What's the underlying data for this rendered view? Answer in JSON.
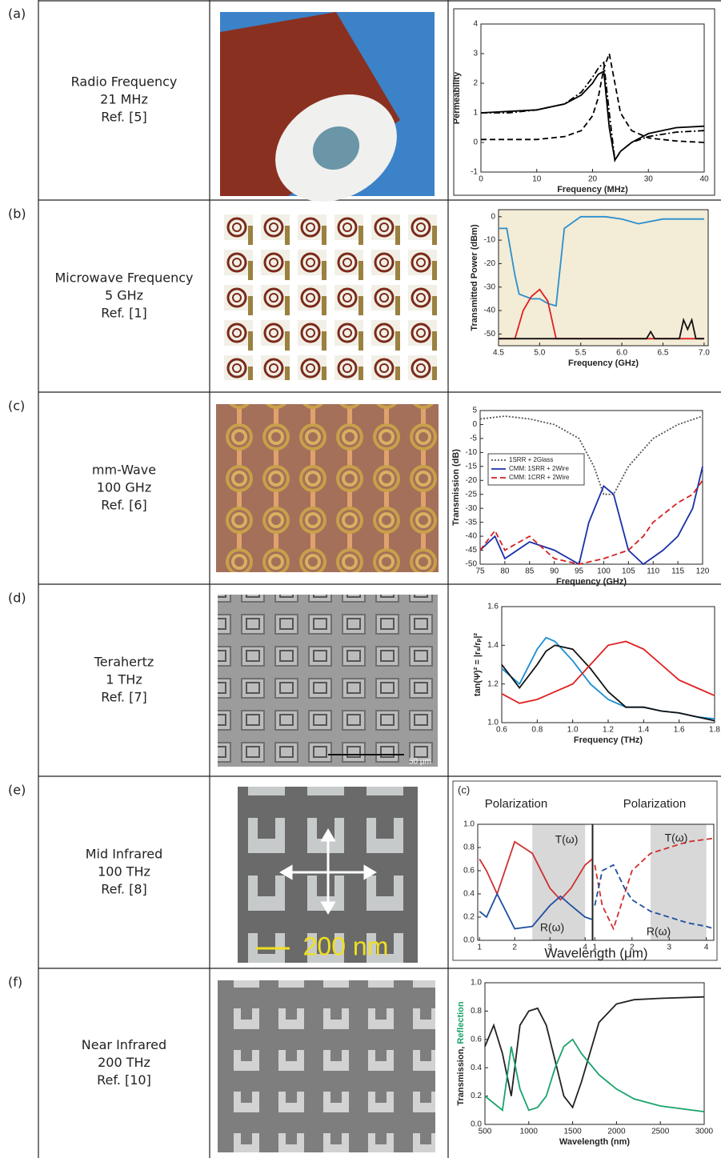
{
  "rows": [
    {
      "tag": "(a)",
      "label": [
        "Radio Frequency",
        "21 MHz",
        "Ref. [5]"
      ],
      "chart": {
        "type": "line",
        "xlabel": "Frequency (MHz)",
        "ylabel": "Permeability",
        "xlim": [
          0,
          40
        ],
        "ylim": [
          -1,
          4
        ],
        "xticks": [
          0,
          10,
          20,
          30,
          40
        ],
        "yticks": [
          -1,
          0,
          1,
          2,
          3,
          4
        ],
        "x": [
          0,
          5,
          10,
          15,
          18,
          20,
          21,
          22,
          23,
          24,
          25,
          27,
          30,
          35,
          40
        ],
        "series": [
          {
            "color": "#000000",
            "dash": "solid",
            "values": [
              1.0,
              1.05,
              1.1,
              1.3,
              1.6,
              2.0,
              2.3,
              2.4,
              0.5,
              -0.6,
              -0.3,
              0.0,
              0.3,
              0.5,
              0.55
            ]
          },
          {
            "color": "#000000",
            "dash": "dashdot",
            "values": [
              1.0,
              1.0,
              1.1,
              1.3,
              1.7,
              2.2,
              2.5,
              2.7,
              1.0,
              -0.6,
              -0.3,
              0.0,
              0.2,
              0.35,
              0.4
            ]
          },
          {
            "color": "#000000",
            "dash": "dash",
            "values": [
              0.1,
              0.1,
              0.1,
              0.2,
              0.4,
              0.9,
              1.5,
              2.5,
              3.0,
              2.0,
              1.0,
              0.4,
              0.15,
              0.05,
              0.0
            ]
          }
        ]
      }
    },
    {
      "tag": "(b)",
      "label": [
        "Microwave Frequency",
        "5 GHz",
        "Ref. [1]"
      ],
      "chart": {
        "type": "line",
        "xlabel": "Frequency (GHz)",
        "ylabel": "Transmitted Power (dBm)",
        "background": "#f3ecd6",
        "xlim": [
          4.5,
          7.05
        ],
        "ylim": [
          -55,
          3
        ],
        "xticks": [
          4.5,
          {
            "value": 5,
            "label": "5.0"
          },
          5.5,
          {
            "value": 6,
            "label": "6.0"
          },
          6.5,
          {
            "value": 7,
            "label": "7.0"
          }
        ],
        "yticks": [
          0,
          -10,
          -20,
          -30,
          -40,
          -50
        ],
        "series": [
          {
            "color": "#2a8fd0",
            "dash": "solid",
            "x": [
              4.5,
              4.6,
              4.7,
              4.75,
              4.9,
              5.0,
              5.1,
              5.2,
              5.3,
              5.5,
              5.8,
              6.0,
              6.2,
              6.5,
              6.8,
              7.0
            ],
            "values": [
              -5,
              -5,
              -25,
              -33,
              -35,
              -35,
              -37,
              -38,
              -5,
              0,
              0,
              -1,
              -3,
              -1,
              -1,
              -1
            ]
          },
          {
            "color": "#e02020",
            "dash": "solid",
            "x": [
              4.5,
              4.7,
              4.8,
              4.9,
              5.0,
              5.1,
              5.2,
              7.0
            ],
            "values": [
              -52,
              -52,
              -40,
              -34,
              -31,
              -36,
              -52,
              -52
            ]
          },
          {
            "color": "#111111",
            "dash": "solid",
            "x": [
              4.5,
              6.3,
              6.35,
              6.4,
              6.7,
              6.75,
              6.8,
              6.85,
              6.9,
              7.0
            ],
            "values": [
              -52,
              -52,
              -49,
              -52,
              -52,
              -44,
              -48,
              -44,
              -52,
              -52
            ]
          }
        ]
      }
    },
    {
      "tag": "(c)",
      "label": [
        "mm-Wave",
        "100 GHz",
        "Ref.  [6]"
      ],
      "chart": {
        "type": "line",
        "xlabel": "Frequency (GHz)",
        "ylabel": "Transmission (dB)",
        "legend": "upper left",
        "xlim": [
          75,
          120
        ],
        "ylim": [
          -50,
          5
        ],
        "xticks": [
          75,
          80,
          85,
          90,
          95,
          100,
          105,
          110,
          115,
          120
        ],
        "yticks": [
          5,
          0,
          -5,
          -10,
          -15,
          -20,
          -25,
          -30,
          -35,
          -40,
          -45,
          -50
        ],
        "series": [
          {
            "name": "1SRR + 2Glass",
            "color": "#555555",
            "dash": "dot",
            "x": [
              75,
              80,
              85,
              90,
              95,
              98,
              100,
              102,
              105,
              110,
              115,
              120
            ],
            "values": [
              2,
              3,
              2,
              0,
              -5,
              -15,
              -25,
              -25,
              -15,
              -5,
              0,
              3
            ]
          },
          {
            "name": "CMM: 1SRR + 2Wire",
            "color": "#1a2fa8",
            "dash": "solid",
            "x": [
              75,
              78,
              80,
              85,
              90,
              95,
              97,
              100,
              102,
              105,
              108,
              112,
              115,
              118,
              120
            ],
            "values": [
              -45,
              -40,
              -48,
              -42,
              -45,
              -50,
              -35,
              -22,
              -25,
              -45,
              -50,
              -45,
              -40,
              -30,
              -15
            ]
          },
          {
            "name": "CMM: 1CRR + 2Wire",
            "color": "#d42020",
            "dash": "dash",
            "x": [
              75,
              78,
              80,
              85,
              90,
              95,
              100,
              105,
              108,
              110,
              115,
              118,
              120
            ],
            "values": [
              -45,
              -38,
              -45,
              -40,
              -48,
              -50,
              -48,
              -45,
              -40,
              -35,
              -28,
              -25,
              -20
            ]
          }
        ]
      }
    },
    {
      "tag": "(d)",
      "label": [
        "Terahertz",
        "1 THz",
        "Ref. [7]"
      ],
      "image_text": "50 μm",
      "chart": {
        "type": "line",
        "xlabel": "Frequency (THz)",
        "ylabel": "tan(Ψ)² = |rₛ/rₚ|²",
        "xlim": [
          0.6,
          1.8
        ],
        "ylim": [
          1,
          1.6
        ],
        "xticks": [
          0.6,
          0.8,
          {
            "value": 1,
            "label": "1.0"
          },
          1.2,
          1.4,
          1.6,
          1.8
        ],
        "yticks": [
          {
            "value": 1,
            "label": "1.0"
          },
          1.2,
          1.4,
          1.6
        ],
        "x": [
          0.6,
          0.7,
          0.8,
          0.85,
          0.9,
          1.0,
          1.1,
          1.2,
          1.3,
          1.4,
          1.5,
          1.6,
          1.7,
          1.8
        ],
        "series": [
          {
            "color": "#1a8fd0",
            "dash": "solid",
            "values": [
              1.28,
              1.2,
              1.38,
              1.44,
              1.42,
              1.32,
              1.2,
              1.12,
              1.08,
              1.08,
              1.06,
              1.05,
              1.03,
              1.02
            ]
          },
          {
            "color": "#111111",
            "dash": "solid",
            "values": [
              1.3,
              1.18,
              1.3,
              1.37,
              1.4,
              1.38,
              1.28,
              1.16,
              1.08,
              1.08,
              1.06,
              1.05,
              1.03,
              1.01
            ]
          },
          {
            "color": "#e02020",
            "dash": "solid",
            "values": [
              1.15,
              1.1,
              1.12,
              1.14,
              1.16,
              1.2,
              1.3,
              1.4,
              1.42,
              1.38,
              1.3,
              1.22,
              1.18,
              1.14
            ]
          }
        ]
      }
    },
    {
      "tag": "(e)",
      "label": [
        "Mid Infrared",
        "100 THz",
        "Ref. [8]"
      ],
      "image_text": "200 nm",
      "chart": {
        "type": "panels",
        "tag": "(c)",
        "xlabel": "Wavelength (μm)",
        "ylim": [
          0,
          1
        ],
        "yticks": [
          {
            "value": 0,
            "label": "0.0"
          },
          0.2,
          0.4,
          0.6,
          0.8,
          {
            "value": 1,
            "label": "1.0"
          }
        ],
        "panels": [
          {
            "title": "Polarization",
            "xlim": [
              0.95,
              4.2
            ],
            "xticks": [
              1,
              2,
              3,
              4
            ],
            "shade": [
              2.5,
              4
            ],
            "labels": [
              "T(ω)",
              "R(ω)"
            ],
            "x": [
              1,
              1.2,
              1.5,
              2,
              2.5,
              3,
              3.3,
              3.6,
              4,
              4.2
            ],
            "series": [
              {
                "color": "#d03030",
                "dash": "solid",
                "values": [
                  0.7,
                  0.6,
                  0.4,
                  0.85,
                  0.75,
                  0.45,
                  0.35,
                  0.45,
                  0.65,
                  0.7
                ]
              },
              {
                "color": "#1f4fa0",
                "dash": "solid",
                "values": [
                  0.25,
                  0.2,
                  0.4,
                  0.1,
                  0.12,
                  0.3,
                  0.38,
                  0.3,
                  0.2,
                  0.18
                ]
              }
            ]
          },
          {
            "title": "Polarization",
            "xlim": [
              0.95,
              4.2
            ],
            "xticks": [
              1,
              2,
              3,
              4
            ],
            "shade": [
              2.5,
              4
            ],
            "labels": [
              "T(ω)",
              "R(ω)"
            ],
            "x": [
              1,
              1.2,
              1.5,
              1.8,
              2,
              2.5,
              3,
              3.5,
              4,
              4.2
            ],
            "series": [
              {
                "color": "#d03030",
                "dash": "dash",
                "values": [
                  0.65,
                  0.3,
                  0.1,
                  0.4,
                  0.6,
                  0.75,
                  0.8,
                  0.85,
                  0.87,
                  0.88
                ]
              },
              {
                "color": "#1f4fa0",
                "dash": "dash",
                "values": [
                  0.3,
                  0.6,
                  0.65,
                  0.45,
                  0.35,
                  0.25,
                  0.2,
                  0.15,
                  0.12,
                  0.1
                ]
              }
            ]
          }
        ]
      }
    },
    {
      "tag": "(f)",
      "label": [
        "Near Infrared",
        "200 THz",
        "Ref. [10]"
      ],
      "chart": {
        "type": "line",
        "xlabel": "Wavelength (nm)",
        "ylabel": [
          "Transmission, ",
          "Reflection"
        ],
        "xlim": [
          500,
          3000
        ],
        "ylim": [
          0,
          1
        ],
        "xticks": [
          500,
          1000,
          1500,
          2000,
          2500,
          3000
        ],
        "yticks": [
          {
            "value": 0,
            "label": "0.0"
          },
          0.2,
          0.4,
          0.6,
          0.8,
          {
            "value": 1,
            "label": "1.0"
          }
        ],
        "x": [
          500,
          600,
          700,
          800,
          900,
          1000,
          1100,
          1200,
          1300,
          1400,
          1500,
          1600,
          1800,
          2000,
          2200,
          2500,
          3000
        ],
        "series": [
          {
            "color": "#222222",
            "dash": "solid",
            "values": [
              0.55,
              0.7,
              0.5,
              0.2,
              0.7,
              0.8,
              0.82,
              0.7,
              0.45,
              0.2,
              0.12,
              0.3,
              0.72,
              0.85,
              0.88,
              0.89,
              0.9
            ]
          },
          {
            "color": "#1aa36a",
            "dash": "solid",
            "values": [
              0.2,
              0.15,
              0.1,
              0.55,
              0.25,
              0.1,
              0.12,
              0.2,
              0.4,
              0.55,
              0.6,
              0.5,
              0.35,
              0.25,
              0.18,
              0.13,
              0.09
            ]
          }
        ]
      }
    }
  ]
}
